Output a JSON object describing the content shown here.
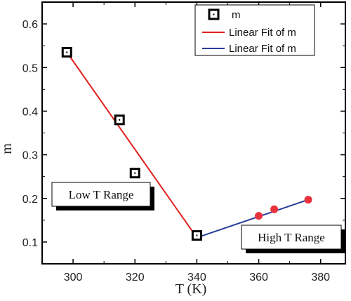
{
  "chart_data": {
    "type": "scatter",
    "xlabel": "T (K)",
    "ylabel": "m",
    "xlim": [
      290,
      388
    ],
    "ylim": [
      0.05,
      0.65
    ],
    "x_ticks": [
      300,
      320,
      340,
      360,
      380
    ],
    "y_ticks": [
      0.1,
      0.2,
      0.3,
      0.4,
      0.5,
      0.6
    ],
    "series": [
      {
        "name": "m",
        "marker": "open-square",
        "color": "#000000",
        "x": [
          298,
          315,
          320,
          340
        ],
        "y": [
          0.535,
          0.38,
          0.258,
          0.115
        ]
      },
      {
        "marker": "filled-circle",
        "color": "#e8323c",
        "x": [
          340,
          360,
          365,
          376
        ],
        "y": [
          0.115,
          0.16,
          0.175,
          0.197
        ]
      }
    ],
    "fits": [
      {
        "name": "Linear Fit of m",
        "color": "#e02020",
        "x": [
          298,
          340
        ],
        "y": [
          0.535,
          0.11
        ]
      },
      {
        "name": "Linear Fit of m",
        "color": "#2a3d9a",
        "x": [
          340,
          376
        ],
        "y": [
          0.11,
          0.197
        ]
      }
    ],
    "annotations": [
      "Low T Range",
      "High T Range"
    ],
    "legend_position": "top-right",
    "grid": false
  }
}
